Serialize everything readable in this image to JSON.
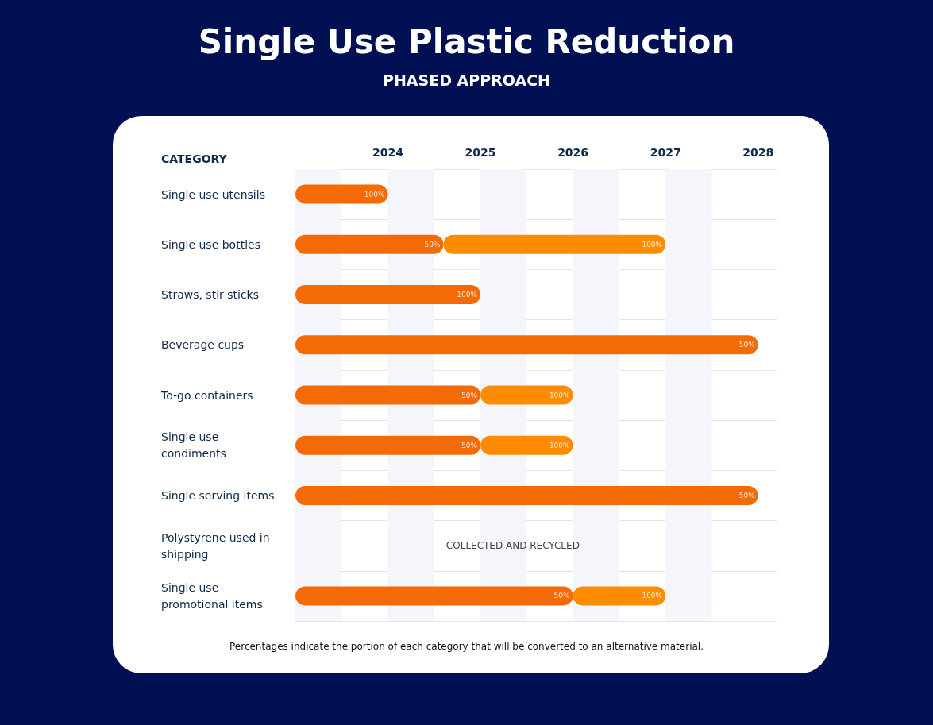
{
  "chart_data": {
    "type": "bar",
    "orientation": "horizontal",
    "title": "Single Use Plastic Reduction",
    "subtitle": "PHASED APPROACH",
    "ylabel": "CATEGORY",
    "categories": [
      "Single use utensils",
      "Single use bottles",
      "Straws, stir sticks",
      "Beverage cups",
      "To-go containers",
      "Single use condiments",
      "Single serving items",
      "Polystyrene used in shipping",
      "Single use promotional items"
    ],
    "series": [
      {
        "color": "#f46a06",
        "values": [
          1,
          1.6,
          2,
          5,
          2,
          2,
          5,
          null,
          3
        ],
        "base": [
          2023,
          2023,
          2023,
          2023,
          2023,
          2023,
          2023,
          null,
          2023
        ]
      },
      {
        "color": "#ff8c00",
        "values": [
          null,
          2.4,
          null,
          null,
          1,
          1,
          null,
          null,
          1
        ],
        "base": [
          null,
          2024.6,
          null,
          null,
          2025,
          2025,
          null,
          null,
          2026
        ]
      }
    ],
    "xlim": [
      2023,
      2028.2
    ],
    "xticks": [
      2024,
      2025,
      2026,
      2027,
      2028
    ],
    "bands": [
      {
        "axis": "x",
        "from": 2023,
        "to": 2023.5,
        "color": "#f5f6fb"
      },
      {
        "axis": "x",
        "from": 2024,
        "to": 2024.5,
        "color": "#f5f6fb"
      },
      {
        "axis": "x",
        "from": 2025,
        "to": 2025.5,
        "color": "#f5f6fb"
      },
      {
        "axis": "x",
        "from": 2026,
        "to": 2026.5,
        "color": "#f5f6fb"
      },
      {
        "axis": "x",
        "from": 2027,
        "to": 2027.5,
        "color": "#f5f6fb"
      }
    ],
    "grid": "y",
    "annotations": [
      {
        "text": "100%",
        "x": 2024,
        "y": "Single use utensils"
      },
      {
        "text": "50%",
        "x": 2024.6,
        "y": "Single use bottles"
      },
      {
        "text": "100%",
        "x": 2027,
        "y": "Single use bottles"
      },
      {
        "text": "100%",
        "x": 2025,
        "y": "Straws, stir sticks"
      },
      {
        "text": "50%",
        "x": 2028,
        "y": "Beverage cups"
      },
      {
        "text": "50%",
        "x": 2025,
        "y": "To-go containers"
      },
      {
        "text": "100%",
        "x": 2026,
        "y": "To-go containers"
      },
      {
        "text": "50%",
        "x": 2025,
        "y": "Single use condiments"
      },
      {
        "text": "100%",
        "x": 2026,
        "y": "Single use condiments"
      },
      {
        "text": "50%",
        "x": 2028,
        "y": "Single serving items"
      },
      {
        "text": "50%",
        "x": 2026,
        "y": "Single use promotional items"
      },
      {
        "text": "100%",
        "x": 2027,
        "y": "Single use promotional items"
      },
      "COLLECTED AND RECYCLED",
      "Percentages indicate the portion of each category that will be converted to an alternative material."
    ]
  }
}
